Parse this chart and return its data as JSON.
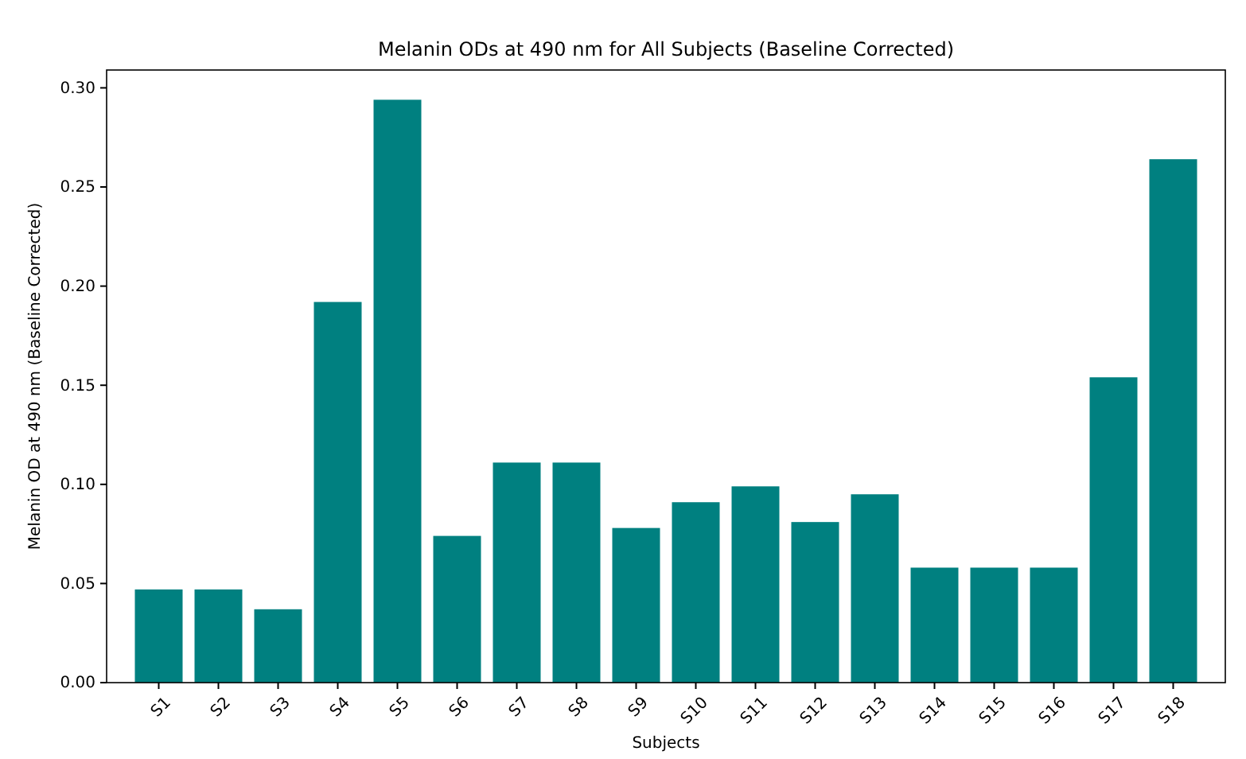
{
  "chart_data": {
    "type": "bar",
    "title": "Melanin ODs at 490 nm for All Subjects (Baseline Corrected)",
    "xlabel": "Subjects",
    "ylabel": "Melanin OD at 490 nm (Baseline Corrected)",
    "categories": [
      "S1",
      "S2",
      "S3",
      "S4",
      "S5",
      "S6",
      "S7",
      "S8",
      "S9",
      "S10",
      "S11",
      "S12",
      "S13",
      "S14",
      "S15",
      "S16",
      "S17",
      "S18"
    ],
    "values": [
      0.047,
      0.047,
      0.037,
      0.192,
      0.294,
      0.074,
      0.111,
      0.111,
      0.078,
      0.091,
      0.099,
      0.081,
      0.095,
      0.058,
      0.058,
      0.058,
      0.154,
      0.264
    ],
    "color": "#008080",
    "ylim": [
      0,
      0.309
    ],
    "yticks": [
      {
        "value": 0,
        "label": "0.00"
      },
      {
        "value": 0.05,
        "label": "0.05"
      },
      {
        "value": 0.1,
        "label": "0.10"
      },
      {
        "value": 0.15,
        "label": "0.15"
      },
      {
        "value": 0.2,
        "label": "0.20"
      },
      {
        "value": 0.25,
        "label": "0.25"
      },
      {
        "value": 0.3,
        "label": "0.30"
      }
    ],
    "grid": false
  }
}
